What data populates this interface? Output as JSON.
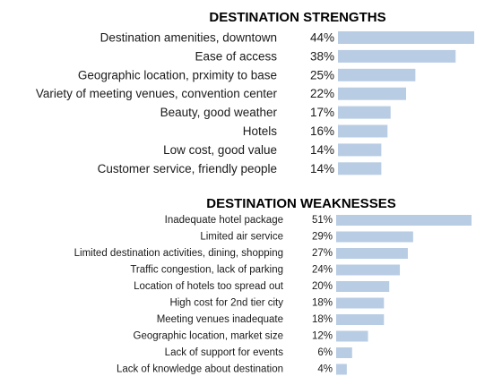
{
  "chart_data": [
    {
      "type": "bar",
      "orientation": "horizontal",
      "title": "DESTINATION STRENGTHS",
      "categories": [
        "Destination amenities, downtown",
        "Ease of access",
        "Geographic location, prximity to base",
        "Variety of meeting venues, convention center",
        "Beauty, good weather",
        "Hotels",
        "Low cost, good value",
        "Customer service, friendly people"
      ],
      "values": [
        44,
        38,
        25,
        22,
        17,
        16,
        14,
        14
      ],
      "value_labels": [
        "44%",
        "38%",
        "25%",
        "22%",
        "17%",
        "16%",
        "14%",
        "14%"
      ],
      "xlim": [
        0,
        44
      ],
      "color": "#b8cce4",
      "grid": false,
      "legend": "none"
    },
    {
      "type": "bar",
      "orientation": "horizontal",
      "title": "DESTINATION WEAKNESSES",
      "categories": [
        "Inadequate hotel package",
        "Limited air service",
        "Limited destination activities, dining,  shopping",
        "Traffic congestion, lack of parking",
        "Location of hotels too spread out",
        "High cost for 2nd tier city",
        "Meeting venues inadequate",
        "Geographic location, market size",
        "Lack of support for events",
        "Lack of knowledge about destination"
      ],
      "values": [
        51,
        29,
        27,
        24,
        20,
        18,
        18,
        12,
        6,
        4
      ],
      "value_labels": [
        "51%",
        "29%",
        "27%",
        "24%",
        "20%",
        "18%",
        "18%",
        "12%",
        "6%",
        "4%"
      ],
      "xlim": [
        0,
        51
      ],
      "color": "#b8cce4",
      "grid": false,
      "legend": "none"
    }
  ]
}
